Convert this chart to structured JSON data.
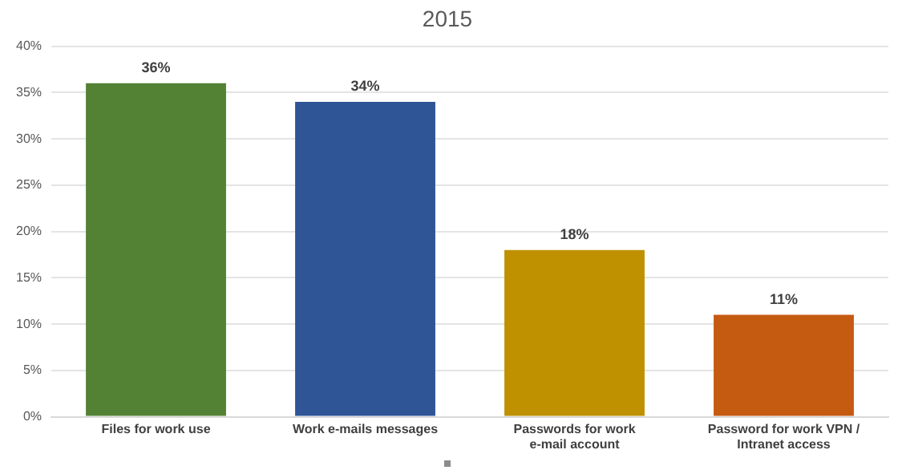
{
  "chart_data": {
    "type": "bar",
    "title": "2015",
    "categories": [
      "Files for work use",
      "Work e-mails messages",
      "Passwords for work e-mail account",
      "Password for work VPN / Intranet access"
    ],
    "values": [
      36,
      34,
      18,
      11
    ],
    "colors": [
      "#548235",
      "#2f5597",
      "#bf9000",
      "#c55a11"
    ],
    "value_labels": [
      "36%",
      "34%",
      "18%",
      "11%"
    ],
    "ylim": [
      0,
      40
    ],
    "yticks": [
      {
        "value": 0,
        "label": "0%"
      },
      {
        "value": 5,
        "label": "5%"
      },
      {
        "value": 10,
        "label": "10%"
      },
      {
        "value": 15,
        "label": "15%"
      },
      {
        "value": 20,
        "label": "20%"
      },
      {
        "value": 25,
        "label": "25%"
      },
      {
        "value": 30,
        "label": "30%"
      },
      {
        "value": 35,
        "label": "35%"
      },
      {
        "value": 40,
        "label": "40%"
      }
    ],
    "grid": "y"
  }
}
